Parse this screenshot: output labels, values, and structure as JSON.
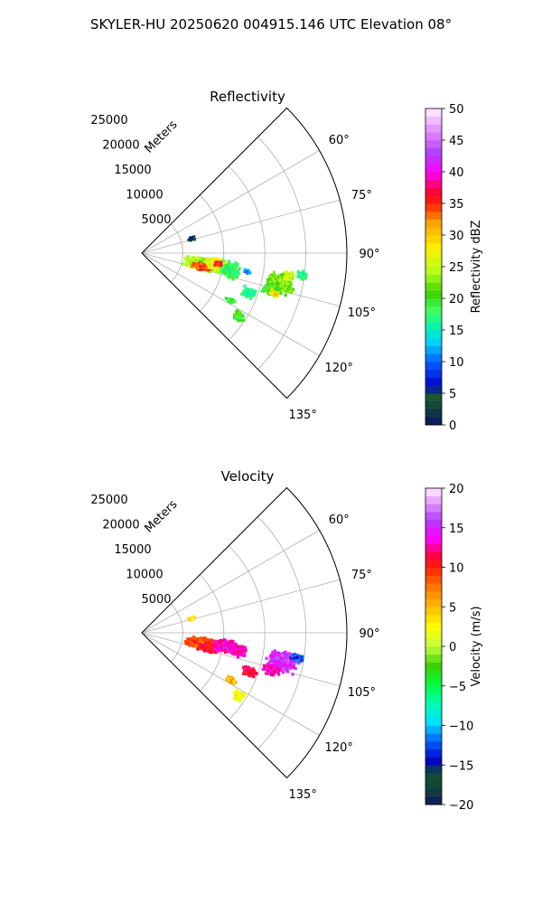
{
  "suptitle": "SKYLER-HU  20250620  004915.146 UTC Elevation 08°",
  "chart_data": [
    {
      "type": "heatmap",
      "subtype": "polar-sector",
      "title": "Reflectivity",
      "radial_label": "Meters",
      "radial_ticks": [
        5000,
        10000,
        15000,
        20000,
        25000
      ],
      "range_max_m": 25000,
      "theta_range_deg": [
        45,
        135
      ],
      "theta_ticks": [
        "60°",
        "75°",
        "90°",
        "105°",
        "120°",
        "135°"
      ],
      "grid": true,
      "colorbar": {
        "label": "Reflectivity dBZ",
        "min": 0,
        "max": 50,
        "ticks": [
          "0",
          "5",
          "10",
          "15",
          "20",
          "25",
          "30",
          "35",
          "40",
          "45",
          "50"
        ]
      },
      "echoes": [
        {
          "az": 74,
          "r": 6300,
          "ext_deg": 2,
          "ext_r": 500,
          "value": 4
        },
        {
          "az": 100,
          "r": 7500,
          "ext_deg": 7,
          "ext_r": 2500,
          "value": 24
        },
        {
          "az": 103,
          "r": 7400,
          "ext_deg": 4,
          "ext_r": 1300,
          "value": 34
        },
        {
          "az": 99,
          "r": 9200,
          "ext_deg": 5,
          "ext_r": 1700,
          "value": 27
        },
        {
          "az": 101,
          "r": 11000,
          "ext_deg": 6,
          "ext_r": 1400,
          "value": 18
        },
        {
          "az": 98,
          "r": 9400,
          "ext_deg": 2,
          "ext_r": 600,
          "value": 36
        },
        {
          "az": 100,
          "r": 13000,
          "ext_deg": 1.5,
          "ext_r": 500,
          "value": 12
        },
        {
          "az": 102,
          "r": 17300,
          "ext_deg": 5,
          "ext_r": 2200,
          "value": 22
        },
        {
          "az": 99,
          "r": 18100,
          "ext_deg": 2,
          "ext_r": 900,
          "value": 26
        },
        {
          "az": 106,
          "r": 16400,
          "ext_deg": 3,
          "ext_r": 1300,
          "value": 20
        },
        {
          "az": 107,
          "r": 16900,
          "ext_deg": 1.5,
          "ext_r": 700,
          "value": 29
        },
        {
          "az": 98,
          "r": 19800,
          "ext_deg": 2,
          "ext_r": 800,
          "value": 17
        },
        {
          "az": 110,
          "r": 13900,
          "ext_deg": 3,
          "ext_r": 1100,
          "value": 17
        },
        {
          "az": 118,
          "r": 12300,
          "ext_deg": 2,
          "ext_r": 800,
          "value": 19
        },
        {
          "az": 123,
          "r": 14100,
          "ext_deg": 3,
          "ext_r": 900,
          "value": 20
        }
      ]
    },
    {
      "type": "heatmap",
      "subtype": "polar-sector",
      "title": "Velocity",
      "radial_label": "Meters",
      "radial_ticks": [
        5000,
        10000,
        15000,
        20000,
        25000
      ],
      "range_max_m": 25000,
      "theta_range_deg": [
        45,
        135
      ],
      "theta_ticks": [
        "60°",
        "75°",
        "90°",
        "105°",
        "120°",
        "135°"
      ],
      "grid": true,
      "colorbar": {
        "label": "Velocity (m/s)",
        "min": -20,
        "max": 20,
        "ticks": [
          "−20",
          "−15",
          "−10",
          "−5",
          "0",
          "5",
          "10",
          "15",
          "20"
        ]
      },
      "echoes": [
        {
          "az": 74,
          "r": 6300,
          "ext_deg": 2,
          "ext_r": 500,
          "value": 4
        },
        {
          "az": 100,
          "r": 7300,
          "ext_deg": 7,
          "ext_r": 2300,
          "value": 9
        },
        {
          "az": 103,
          "r": 8200,
          "ext_deg": 4,
          "ext_r": 1500,
          "value": 11
        },
        {
          "az": 99,
          "r": 10300,
          "ext_deg": 5,
          "ext_r": 1800,
          "value": 13
        },
        {
          "az": 101,
          "r": 12000,
          "ext_deg": 4,
          "ext_r": 1200,
          "value": 13
        },
        {
          "az": 101,
          "r": 17400,
          "ext_deg": 5,
          "ext_r": 2300,
          "value": 15
        },
        {
          "az": 99,
          "r": 19200,
          "ext_deg": 2,
          "ext_r": 900,
          "value": -12
        },
        {
          "az": 106,
          "r": 16600,
          "ext_deg": 3,
          "ext_r": 1300,
          "value": 13
        },
        {
          "az": 110,
          "r": 14000,
          "ext_deg": 3,
          "ext_r": 1100,
          "value": 11
        },
        {
          "az": 118,
          "r": 12400,
          "ext_deg": 2,
          "ext_r": 800,
          "value": 5
        },
        {
          "az": 123,
          "r": 14100,
          "ext_deg": 3,
          "ext_r": 900,
          "value": 2
        }
      ]
    }
  ]
}
